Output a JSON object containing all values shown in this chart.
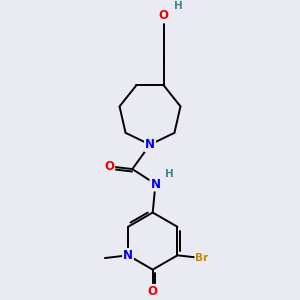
{
  "bg_color": "#eaeaf2",
  "atom_colors": {
    "C": "#000000",
    "N": "#0000ee",
    "O": "#ee0000",
    "Br": "#cc8800",
    "H": "#408888"
  },
  "bond_color": "#000000",
  "lw": 1.4,
  "fs": 8.5,
  "fig_width": 3.0,
  "fig_height": 3.0,
  "xlim": [
    0,
    10
  ],
  "ylim": [
    0,
    10
  ]
}
